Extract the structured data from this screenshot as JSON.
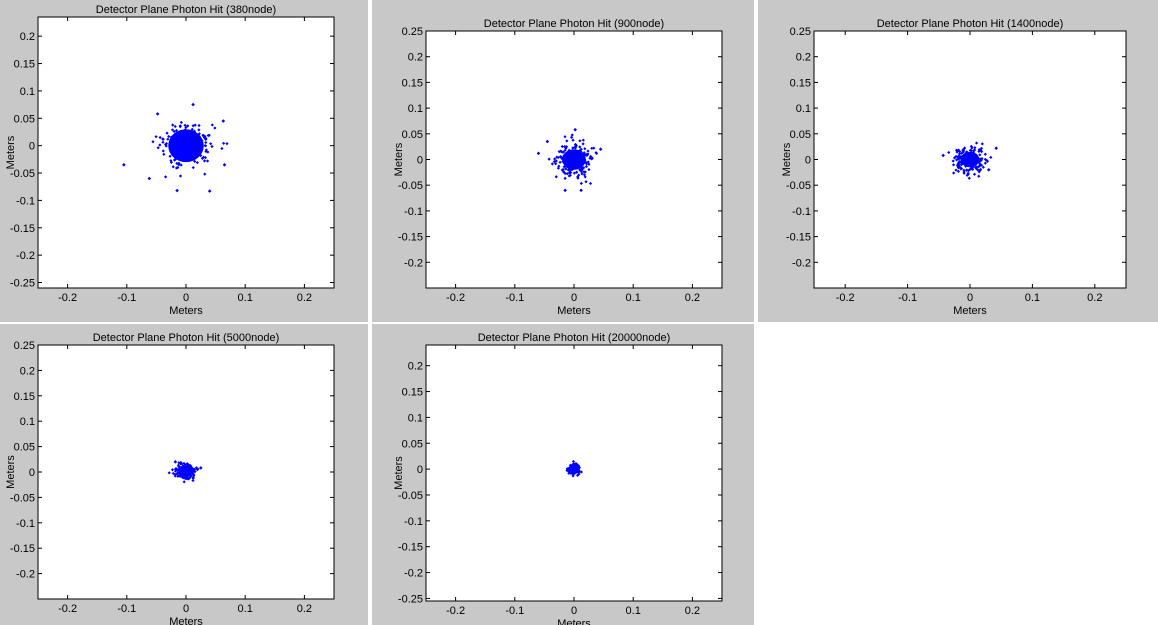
{
  "figure": {
    "background": "#c8c8c8",
    "axes_background": "#ffffff",
    "marker_color": "#0000ff"
  },
  "chart_data": [
    {
      "type": "scatter",
      "title": "Detector Plane Photon Hit (380node)",
      "xlabel": "Meters",
      "ylabel": "Meters",
      "xlim": [
        -0.25,
        0.25
      ],
      "ylim": [
        -0.26,
        0.235
      ],
      "xticks": [
        -0.2,
        -0.1,
        0,
        0.1,
        0.2
      ],
      "yticks": [
        -0.25,
        -0.2,
        -0.15,
        -0.1,
        -0.05,
        0,
        0.05,
        0.1,
        0.15,
        0.2
      ],
      "xtick_labels": [
        "-0.2",
        "-0.1",
        "0",
        "0.1",
        "0.2"
      ],
      "ytick_labels": [
        "-0.25",
        "-0.2",
        "-0.15",
        "-0.1",
        "-0.05",
        "0",
        "0.05",
        "0.1",
        "0.15",
        "0.2"
      ],
      "cluster": {
        "center": [
          0,
          0
        ],
        "core_radius": 0.03,
        "spread": 0.06
      },
      "points": [
        [
          -0.105,
          -0.035
        ],
        [
          0.04,
          -0.083
        ],
        [
          0.012,
          0.075
        ],
        [
          -0.048,
          0.058
        ],
        [
          0.063,
          0.045
        ],
        [
          -0.062,
          -0.06
        ],
        [
          0.065,
          -0.035
        ],
        [
          -0.015,
          -0.082
        ]
      ]
    },
    {
      "type": "scatter",
      "title": "Detector Plane Photon Hit (900node)",
      "xlabel": "Meters",
      "ylabel": "Meters",
      "xlim": [
        -0.25,
        0.25
      ],
      "ylim": [
        -0.25,
        0.25
      ],
      "xticks": [
        -0.2,
        -0.1,
        0,
        0.1,
        0.2
      ],
      "yticks": [
        -0.2,
        -0.15,
        -0.1,
        -0.05,
        0,
        0.05,
        0.1,
        0.15,
        0.2,
        0.25
      ],
      "xtick_labels": [
        "-0.2",
        "-0.1",
        "0",
        "0.1",
        "0.2"
      ],
      "ytick_labels": [
        "-0.2",
        "-0.15",
        "-0.1",
        "-0.05",
        "0",
        "0.05",
        "0.1",
        "0.15",
        "0.2",
        "0.25"
      ],
      "cluster": {
        "center": [
          0,
          0
        ],
        "core_radius": 0.02,
        "spread": 0.045
      },
      "points": [
        [
          -0.06,
          0.012
        ],
        [
          0.012,
          -0.06
        ],
        [
          -0.015,
          -0.06
        ],
        [
          0.002,
          0.058
        ],
        [
          0.045,
          0.02
        ],
        [
          -0.045,
          0.035
        ]
      ]
    },
    {
      "type": "scatter",
      "title": "Detector Plane Photon Hit (1400node)",
      "xlabel": "Meters",
      "ylabel": "Meters",
      "xlim": [
        -0.25,
        0.25
      ],
      "ylim": [
        -0.25,
        0.25
      ],
      "xticks": [
        -0.2,
        -0.1,
        0,
        0.1,
        0.2
      ],
      "yticks": [
        -0.2,
        -0.15,
        -0.1,
        -0.05,
        0,
        0.05,
        0.1,
        0.15,
        0.2,
        0.25
      ],
      "xtick_labels": [
        "-0.2",
        "-0.1",
        "0",
        "0.1",
        "0.2"
      ],
      "ytick_labels": [
        "-0.2",
        "-0.15",
        "-0.1",
        "-0.05",
        "0",
        "0.05",
        "0.1",
        "0.15",
        "0.2",
        "0.25"
      ],
      "cluster": {
        "center": [
          0,
          0
        ],
        "core_radius": 0.015,
        "spread": 0.035
      },
      "points": [
        [
          0.042,
          0.022
        ],
        [
          -0.043,
          0.008
        ],
        [
          0.03,
          -0.02
        ]
      ]
    },
    {
      "type": "scatter",
      "title": "Detector Plane Photon Hit (5000node)",
      "xlabel": "Meters",
      "ylabel": "Meters",
      "xlim": [
        -0.25,
        0.25
      ],
      "ylim": [
        -0.25,
        0.25
      ],
      "xticks": [
        -0.2,
        -0.1,
        0,
        0.1,
        0.2
      ],
      "yticks": [
        -0.2,
        -0.15,
        -0.1,
        -0.05,
        0,
        0.05,
        0.1,
        0.15,
        0.2,
        0.25
      ],
      "xtick_labels": [
        "-0.2",
        "-0.1",
        "0",
        "0.1",
        "0.2"
      ],
      "ytick_labels": [
        "-0.2",
        "-0.15",
        "-0.1",
        "-0.05",
        "0",
        "0.05",
        "0.1",
        "0.15",
        "0.2",
        "0.25"
      ],
      "cluster": {
        "center": [
          0,
          0
        ],
        "core_radius": 0.01,
        "spread": 0.022
      },
      "points": [
        [
          0.025,
          0.008
        ],
        [
          -0.018,
          0.02
        ]
      ]
    },
    {
      "type": "scatter",
      "title": "Detector Plane Photon Hit (20000node)",
      "xlabel": "Meters",
      "ylabel": "Meters",
      "xlim": [
        -0.25,
        0.25
      ],
      "ylim": [
        -0.255,
        0.24
      ],
      "xticks": [
        -0.2,
        -0.1,
        0,
        0.1,
        0.2
      ],
      "yticks": [
        -0.25,
        -0.2,
        -0.15,
        -0.1,
        -0.05,
        0,
        0.05,
        0.1,
        0.15,
        0.2
      ],
      "xtick_labels": [
        "-0.2",
        "-0.1",
        "0",
        "0.1",
        "0.2"
      ],
      "ytick_labels": [
        "-0.25",
        "-0.2",
        "-0.15",
        "-0.1",
        "-0.05",
        "0",
        "0.05",
        "0.1",
        "0.15",
        "0.2"
      ],
      "cluster": {
        "center": [
          0,
          0
        ],
        "core_radius": 0.006,
        "spread": 0.012
      },
      "points": []
    }
  ]
}
